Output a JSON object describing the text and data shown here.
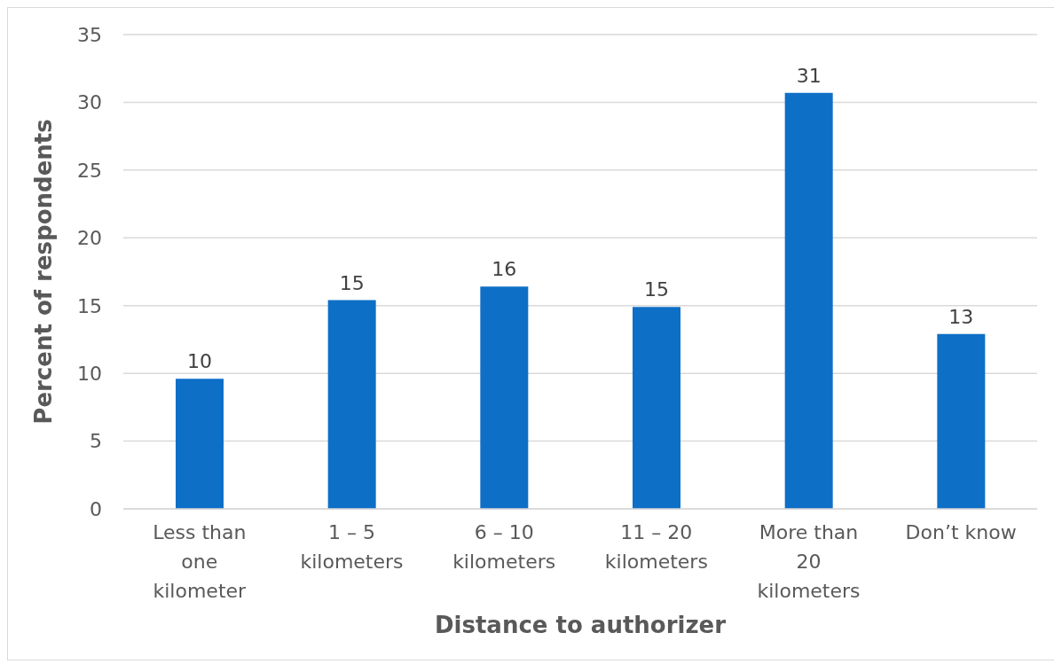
{
  "chart_data": {
    "type": "bar",
    "xlabel": "Distance to authorizer",
    "ylabel": "Percent of respondents",
    "categories": [
      "Less than one kilometer",
      "1 – 5 kilometers",
      "6 – 10 kilometers",
      "11 – 20 kilometers",
      "More than 20 kilometers",
      "Don’t know"
    ],
    "values": [
      9.6,
      15.4,
      16.4,
      14.9,
      30.7,
      12.9
    ],
    "value_labels": [
      "10",
      "15",
      "16",
      "15",
      "31",
      "13"
    ],
    "color": "#0e6fc7",
    "ylim": [
      0,
      35
    ],
    "yticks": [
      0,
      5,
      10,
      15,
      20,
      25,
      30,
      35
    ],
    "grid": "y",
    "legend": false
  }
}
